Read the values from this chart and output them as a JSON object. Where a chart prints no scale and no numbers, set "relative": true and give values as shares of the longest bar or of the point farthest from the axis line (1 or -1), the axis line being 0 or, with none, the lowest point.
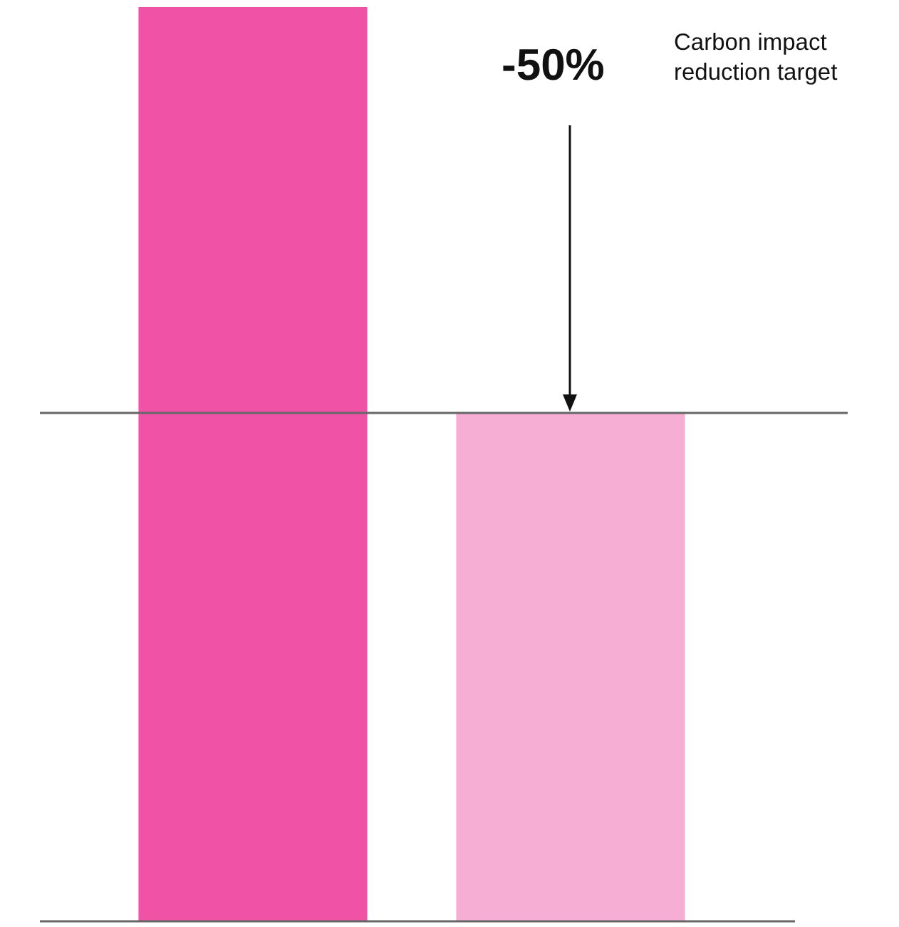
{
  "chart_data": {
    "type": "bar",
    "relative": true,
    "categories": [
      null,
      null
    ],
    "values": [
      1,
      0.556
    ],
    "colors": [
      "#f052a6",
      "#f7aed4"
    ],
    "ref_lines": [
      {
        "axis": "y",
        "value": 0.556,
        "color": "#666666"
      }
    ],
    "annotations": [
      "-50%",
      "Carbon impact\nreduction target"
    ]
  }
}
